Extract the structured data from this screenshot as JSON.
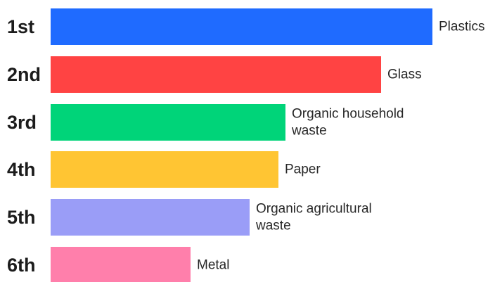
{
  "chart_data": {
    "type": "bar",
    "orientation": "horizontal",
    "ranks": [
      "1st",
      "2nd",
      "3rd",
      "4th",
      "5th",
      "6th"
    ],
    "categories": [
      [
        "Plastics"
      ],
      [
        "Glass"
      ],
      [
        "Organic household",
        "waste"
      ],
      [
        "Paper"
      ],
      [
        "Organic agricultural",
        "waste"
      ],
      [
        "Metal"
      ]
    ],
    "values": [
      100,
      86.6,
      61.6,
      59.6,
      52.1,
      36.6
    ],
    "colors": [
      "#1f6bff",
      "#ff4343",
      "#00d479",
      "#ffc533",
      "#9a9df7",
      "#ff7fab"
    ],
    "grid": false,
    "legend": "none"
  }
}
